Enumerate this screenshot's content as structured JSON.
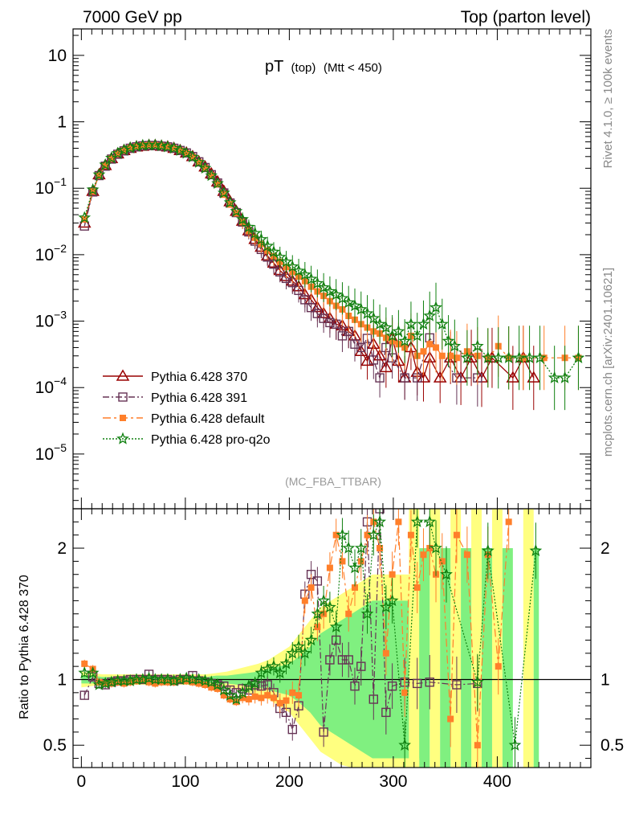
{
  "header": {
    "left_title": "7000 GeV pp",
    "right_title": "Top (parton level)"
  },
  "side_labels": {
    "rivet": "Rivet 4.1.0, ≥ 100k events",
    "mcplots": "mcplots.cern.ch [arXiv:2401.10621]"
  },
  "plot_title": {
    "main": "pT",
    "sub1": "(top)",
    "sub2": "(Mtt < 450)"
  },
  "analysis_label": "(MC_FBA_TTBAR)",
  "ratio_ylabel": "Ratio to Pythia 6.428 370",
  "colors": {
    "s370": "#990000",
    "s391": "#663355",
    "default": "#ff7f2a",
    "proq2o": "#108010",
    "band_yellow": "#ffff80",
    "band_green": "#80f080"
  },
  "chart_data": {
    "type": "line",
    "x_range": [
      -8,
      490
    ],
    "x_ticks": [
      0,
      100,
      200,
      300,
      400
    ],
    "main": {
      "yscale": "log",
      "ylim": [
        1.5e-06,
        25
      ],
      "y_ticks": [
        {
          "value": 10,
          "base": "10",
          "exp": ""
        },
        {
          "value": 1,
          "base": "1",
          "exp": ""
        },
        {
          "value": 0.1,
          "base": "10",
          "exp": "−1"
        },
        {
          "value": 0.01,
          "base": "10",
          "exp": "−2"
        },
        {
          "value": 0.001,
          "base": "10",
          "exp": "−3"
        },
        {
          "value": 0.0001,
          "base": "10",
          "exp": "−4"
        },
        {
          "value": 1e-05,
          "base": "10",
          "exp": "−5"
        }
      ]
    },
    "ratio": {
      "ylim": [
        0.33,
        2.3
      ],
      "y_ticks": [
        "0.5",
        "1",
        "2"
      ],
      "y_tick_values": [
        0.5,
        1,
        2
      ]
    },
    "series": [
      {
        "key": "s370",
        "name": "Pythia 6.428 370",
        "marker": "triangle",
        "dash": "",
        "x": [
          3,
          11,
          17,
          23,
          29,
          35,
          41,
          47,
          53,
          59,
          65,
          71,
          77,
          83,
          89,
          95,
          101,
          107,
          113,
          119,
          125,
          131,
          137,
          143,
          149,
          155,
          161,
          167,
          173,
          179,
          185,
          191,
          197,
          203,
          209,
          215,
          221,
          227,
          233,
          239,
          245,
          251,
          257,
          263,
          269,
          275,
          281,
          287,
          293,
          299,
          305,
          311,
          317,
          323,
          329,
          335,
          345,
          355,
          365,
          375,
          385,
          395,
          415,
          425,
          435
        ],
        "y": [
          0.03,
          0.09,
          0.16,
          0.22,
          0.28,
          0.33,
          0.37,
          0.4,
          0.42,
          0.43,
          0.44,
          0.44,
          0.43,
          0.42,
          0.4,
          0.37,
          0.34,
          0.3,
          0.25,
          0.21,
          0.165,
          0.125,
          0.09,
          0.063,
          0.045,
          0.032,
          0.023,
          0.017,
          0.013,
          0.0096,
          0.0075,
          0.0058,
          0.0047,
          0.004,
          0.0033,
          0.0025,
          0.0021,
          0.0016,
          0.0013,
          0.0011,
          0.0009,
          0.00085,
          0.0007,
          0.0006,
          0.00035,
          0.00025,
          0.00045,
          0.0003,
          0.0002,
          0.00055,
          0.00025,
          0.00014,
          0.0004,
          0.00017,
          0.00014,
          0.00028,
          0.00014,
          0.00028,
          0.00014,
          0.00028,
          0.00014,
          0.00028,
          0.00014,
          0.00028,
          0.00014
        ]
      },
      {
        "key": "s391",
        "name": "Pythia 6.428 391",
        "marker": "square",
        "dash": "8,3,2,3",
        "x": [
          3,
          11,
          17,
          23,
          29,
          35,
          41,
          47,
          53,
          59,
          65,
          71,
          77,
          83,
          89,
          95,
          101,
          107,
          113,
          119,
          125,
          131,
          137,
          143,
          149,
          155,
          161,
          167,
          173,
          179,
          185,
          191,
          197,
          203,
          209,
          215,
          221,
          227,
          233,
          239,
          245,
          251,
          257,
          263,
          269,
          275,
          281,
          287,
          293,
          299,
          311,
          323,
          335,
          361,
          381
        ],
        "y": [
          0.027,
          0.088,
          0.155,
          0.215,
          0.275,
          0.325,
          0.365,
          0.4,
          0.42,
          0.435,
          0.44,
          0.44,
          0.43,
          0.42,
          0.4,
          0.37,
          0.34,
          0.3,
          0.25,
          0.205,
          0.16,
          0.12,
          0.085,
          0.06,
          0.043,
          0.031,
          0.022,
          0.016,
          0.012,
          0.0092,
          0.0072,
          0.0055,
          0.0044,
          0.0038,
          0.0029,
          0.0021,
          0.0016,
          0.0013,
          0.0011,
          0.00095,
          0.0009,
          0.0006,
          0.0007,
          0.00045,
          0.0004,
          0.00055,
          0.00026,
          0.00014,
          0.0004,
          0.00028,
          0.00014,
          0.00014,
          0.00056,
          0.00014,
          0.00014
        ]
      },
      {
        "key": "default",
        "name": "Pythia 6.428 default",
        "marker": "filled-square",
        "dash": "10,4,3,4",
        "x": [
          3,
          11,
          17,
          23,
          29,
          35,
          41,
          47,
          53,
          59,
          65,
          71,
          77,
          83,
          89,
          95,
          101,
          107,
          113,
          119,
          125,
          131,
          137,
          143,
          149,
          155,
          161,
          167,
          173,
          179,
          185,
          191,
          197,
          203,
          209,
          215,
          221,
          227,
          233,
          239,
          245,
          251,
          257,
          263,
          269,
          275,
          281,
          287,
          293,
          299,
          305,
          311,
          317,
          323,
          329,
          335,
          341,
          347,
          355,
          361,
          371,
          381,
          391,
          401,
          411,
          425,
          445,
          465,
          478
        ],
        "y": [
          0.034,
          0.09,
          0.155,
          0.22,
          0.28,
          0.33,
          0.37,
          0.405,
          0.425,
          0.44,
          0.445,
          0.445,
          0.435,
          0.42,
          0.4,
          0.37,
          0.335,
          0.295,
          0.245,
          0.2,
          0.155,
          0.115,
          0.08,
          0.057,
          0.042,
          0.031,
          0.023,
          0.018,
          0.0145,
          0.0115,
          0.0095,
          0.0078,
          0.0065,
          0.0055,
          0.0047,
          0.004,
          0.0033,
          0.0028,
          0.0024,
          0.002,
          0.0017,
          0.0015,
          0.0012,
          0.00105,
          0.0009,
          0.0008,
          0.0007,
          0.00065,
          0.00056,
          0.0005,
          0.00045,
          0.0004,
          0.0006,
          0.0003,
          0.00035,
          0.00045,
          0.0004,
          0.0003,
          0.0003,
          0.00028,
          0.00035,
          0.0003,
          0.00028,
          0.00042,
          0.00028,
          0.00028,
          0.00028,
          0.00028,
          0.00028
        ]
      },
      {
        "key": "proq2o",
        "name": "Pythia 6.428 pro-q2o",
        "marker": "star",
        "dash": "2,2",
        "x": [
          3,
          11,
          17,
          23,
          29,
          35,
          41,
          47,
          53,
          59,
          65,
          71,
          77,
          83,
          89,
          95,
          101,
          107,
          113,
          119,
          125,
          131,
          137,
          143,
          149,
          155,
          161,
          167,
          173,
          179,
          185,
          191,
          197,
          203,
          209,
          215,
          221,
          227,
          233,
          239,
          245,
          251,
          257,
          263,
          269,
          275,
          281,
          287,
          293,
          299,
          305,
          311,
          317,
          323,
          329,
          335,
          341,
          347,
          353,
          359,
          371,
          381,
          391,
          401,
          411,
          421,
          431,
          441,
          455,
          465,
          478
        ],
        "y": [
          0.036,
          0.095,
          0.16,
          0.225,
          0.285,
          0.335,
          0.375,
          0.405,
          0.425,
          0.44,
          0.445,
          0.445,
          0.435,
          0.42,
          0.4,
          0.37,
          0.335,
          0.295,
          0.245,
          0.2,
          0.155,
          0.118,
          0.085,
          0.061,
          0.045,
          0.034,
          0.026,
          0.021,
          0.017,
          0.0135,
          0.011,
          0.0092,
          0.0078,
          0.0066,
          0.0057,
          0.005,
          0.0043,
          0.0037,
          0.0032,
          0.0028,
          0.0025,
          0.0022,
          0.0019,
          0.0017,
          0.0015,
          0.0013,
          0.0011,
          0.0009,
          0.0008,
          0.0006,
          0.0007,
          0.0005,
          0.0009,
          0.0006,
          0.0009,
          0.0012,
          0.0016,
          0.0009,
          0.0005,
          0.00042,
          0.00028,
          0.00042,
          0.00028,
          0.00028,
          0.00028,
          0.00028,
          0.00028,
          0.00028,
          0.00014,
          0.00014,
          0.00028
        ]
      }
    ],
    "ratio_series": [
      {
        "key": "s391",
        "x": [
          3,
          11,
          17,
          23,
          29,
          35,
          41,
          47,
          53,
          59,
          65,
          71,
          77,
          83,
          89,
          95,
          101,
          107,
          113,
          119,
          125,
          131,
          137,
          143,
          149,
          155,
          161,
          167,
          173,
          179,
          185,
          191,
          197,
          203,
          209,
          215,
          221,
          227,
          233,
          239,
          245,
          251,
          257,
          263,
          269,
          275,
          281,
          287,
          293,
          299,
          311,
          323,
          335,
          361,
          381
        ],
        "y": [
          0.88,
          1.02,
          0.97,
          0.96,
          0.98,
          0.99,
          0.99,
          1.0,
          1.0,
          1.0,
          1.04,
          1.0,
          1.0,
          1.0,
          0.99,
          1.0,
          1.0,
          1.03,
          0.99,
          0.98,
          0.97,
          0.96,
          0.95,
          0.92,
          0.9,
          0.93,
          0.92,
          0.96,
          0.95,
          0.96,
          0.9,
          0.78,
          0.75,
          0.62,
          0.8,
          1.65,
          1.8,
          1.75,
          0.6,
          1.15,
          1.3,
          1.15,
          1.15,
          0.95,
          1.1,
          2.2,
          0.85,
          2.3,
          0.75,
          0.95,
          0.98,
          0.97,
          0.98,
          0.96,
          0.97
        ]
      },
      {
        "key": "default",
        "x": [
          3,
          11,
          17,
          23,
          29,
          35,
          41,
          47,
          53,
          59,
          65,
          71,
          77,
          83,
          89,
          95,
          101,
          107,
          113,
          119,
          125,
          131,
          137,
          143,
          149,
          155,
          161,
          167,
          173,
          179,
          185,
          191,
          197,
          203,
          209,
          215,
          221,
          227,
          233,
          239,
          245,
          251,
          257,
          263,
          269,
          275,
          281,
          287,
          293,
          299,
          305,
          311,
          317,
          323,
          329,
          335,
          341,
          347,
          355,
          361,
          371,
          381,
          391,
          401,
          411
        ],
        "y": [
          1.12,
          1.08,
          0.98,
          0.97,
          0.97,
          0.98,
          0.97,
          0.98,
          0.99,
          1.0,
          0.98,
          0.97,
          0.98,
          0.98,
          0.98,
          1.0,
          0.99,
          0.98,
          0.97,
          0.96,
          0.94,
          0.93,
          0.88,
          0.85,
          0.83,
          0.86,
          0.85,
          0.87,
          0.86,
          0.88,
          0.86,
          0.82,
          0.84,
          0.9,
          0.88,
          1.6,
          1.7,
          1.4,
          1.5,
          1.85,
          2.1,
          1.9,
          1.5,
          1.7,
          1.9,
          2.1,
          2.2,
          2.0,
          1.2,
          1.8,
          2.2,
          0.9,
          2.1,
          1.7,
          1.95,
          2.0,
          1.8,
          1.9,
          0.7,
          2.1,
          1.95,
          0.5,
          1.95,
          1.1,
          2.2
        ]
      },
      {
        "key": "proq2o",
        "x": [
          3,
          11,
          17,
          23,
          29,
          35,
          41,
          47,
          53,
          59,
          65,
          71,
          77,
          83,
          89,
          95,
          101,
          107,
          113,
          119,
          125,
          131,
          137,
          143,
          149,
          155,
          161,
          167,
          173,
          179,
          185,
          191,
          197,
          203,
          209,
          215,
          221,
          227,
          233,
          239,
          245,
          251,
          257,
          263,
          269,
          275,
          281,
          287,
          293,
          299,
          311,
          323,
          335,
          341,
          351,
          381,
          391,
          417,
          437
        ],
        "y": [
          1.05,
          1.05,
          0.96,
          0.97,
          0.98,
          0.99,
          0.99,
          0.99,
          1.0,
          1.0,
          1.01,
          1.0,
          1.0,
          1.0,
          0.99,
          1.0,
          1.01,
          1.0,
          1.0,
          0.99,
          0.98,
          0.96,
          0.92,
          0.88,
          0.85,
          0.9,
          0.95,
          0.97,
          1.05,
          1.08,
          1.1,
          1.05,
          1.12,
          1.2,
          1.25,
          1.2,
          1.3,
          1.5,
          1.6,
          1.55,
          1.4,
          2.1,
          2.0,
          1.85,
          2.0,
          1.5,
          2.1,
          2.2,
          1.55,
          1.6,
          0.5,
          2.2,
          2.2,
          2.0,
          1.8,
          0.98,
          1.98,
          0.5,
          1.98
        ]
      }
    ],
    "bands": {
      "yellow": {
        "x": [
          0,
          10,
          20,
          30,
          40,
          50,
          60,
          70,
          80,
          90,
          100,
          110,
          120,
          130,
          140,
          150,
          160,
          170,
          180,
          190,
          200,
          210,
          220,
          230,
          240,
          250,
          260,
          270,
          280,
          290,
          300,
          310,
          320,
          330
        ],
        "half": [
          0.06,
          0.05,
          0.04,
          0.04,
          0.04,
          0.04,
          0.04,
          0.04,
          0.04,
          0.04,
          0.04,
          0.04,
          0.04,
          0.05,
          0.06,
          0.08,
          0.1,
          0.12,
          0.15,
          0.2,
          0.25,
          0.35,
          0.45,
          0.55,
          0.6,
          0.65,
          0.7,
          0.75,
          0.8,
          0.8,
          0.8,
          0.8,
          0.8,
          0.8
        ]
      },
      "green": {
        "x": [
          0,
          10,
          20,
          30,
          40,
          50,
          60,
          70,
          80,
          90,
          100,
          110,
          120,
          130,
          140,
          150,
          160,
          170,
          180,
          190,
          200,
          210,
          220,
          230,
          240,
          250,
          260,
          270,
          280,
          290,
          300,
          310,
          320,
          330
        ],
        "half": [
          0.03,
          0.03,
          0.02,
          0.02,
          0.02,
          0.02,
          0.02,
          0.02,
          0.02,
          0.02,
          0.02,
          0.02,
          0.02,
          0.03,
          0.03,
          0.04,
          0.05,
          0.06,
          0.08,
          0.1,
          0.12,
          0.18,
          0.25,
          0.35,
          0.4,
          0.45,
          0.5,
          0.55,
          0.6,
          0.6,
          0.6,
          0.6,
          0.6,
          0.6
        ]
      },
      "spikes_yellow": [
        [
          315,
          325
        ],
        [
          335,
          345
        ],
        [
          355,
          365
        ],
        [
          375,
          385
        ],
        [
          395,
          405
        ],
        [
          425,
          435
        ]
      ],
      "spikes_green": [
        [
          325,
          335
        ],
        [
          345,
          355
        ],
        [
          365,
          375
        ],
        [
          385,
          395
        ],
        [
          405,
          415
        ],
        [
          435,
          440
        ]
      ]
    }
  }
}
